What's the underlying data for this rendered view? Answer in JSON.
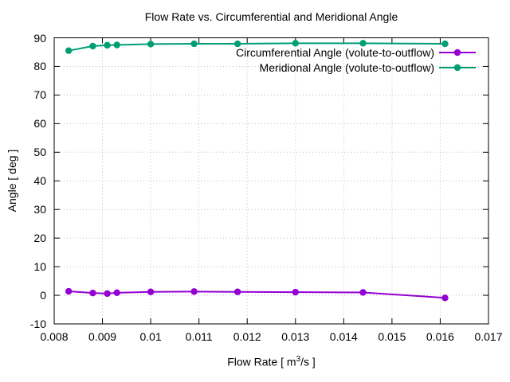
{
  "chart_data": {
    "type": "line",
    "title": "Flow Rate vs. Circumferential and Meridional Angle",
    "xlabel": {
      "prefix": "Flow Rate [ m",
      "sup": "3",
      "suffix": "/s ]"
    },
    "ylabel": "Angle [ deg ]",
    "xlim": [
      0.008,
      0.017
    ],
    "ylim": [
      -10,
      90
    ],
    "xticks": [
      "0.008",
      "0.009",
      "0.01",
      "0.011",
      "0.012",
      "0.013",
      "0.014",
      "0.015",
      "0.016",
      "0.017"
    ],
    "yticks": [
      -10,
      0,
      10,
      20,
      30,
      40,
      50,
      60,
      70,
      80,
      90
    ],
    "grid": true,
    "legend_position": "top-right-inside",
    "background_color": "#ffffff",
    "grid_color": "#bdbdbd",
    "x": [
      0.0083,
      0.0088,
      0.0091,
      0.0093,
      0.01,
      0.0109,
      0.0118,
      0.013,
      0.0144,
      0.0161
    ],
    "series": [
      {
        "name": "Circumferential Angle (volute-to-outflow)",
        "color": "#9400d3",
        "marker": "circle",
        "values": [
          1.4,
          0.8,
          0.6,
          0.9,
          1.2,
          1.3,
          1.2,
          1.1,
          1.0,
          -0.9
        ]
      },
      {
        "name": "Meridional Angle (volute-to-outflow)",
        "color": "#009e73",
        "marker": "circle",
        "values": [
          85.5,
          87.1,
          87.4,
          87.5,
          87.8,
          87.9,
          87.9,
          88.1,
          88.1,
          87.9
        ]
      }
    ]
  }
}
